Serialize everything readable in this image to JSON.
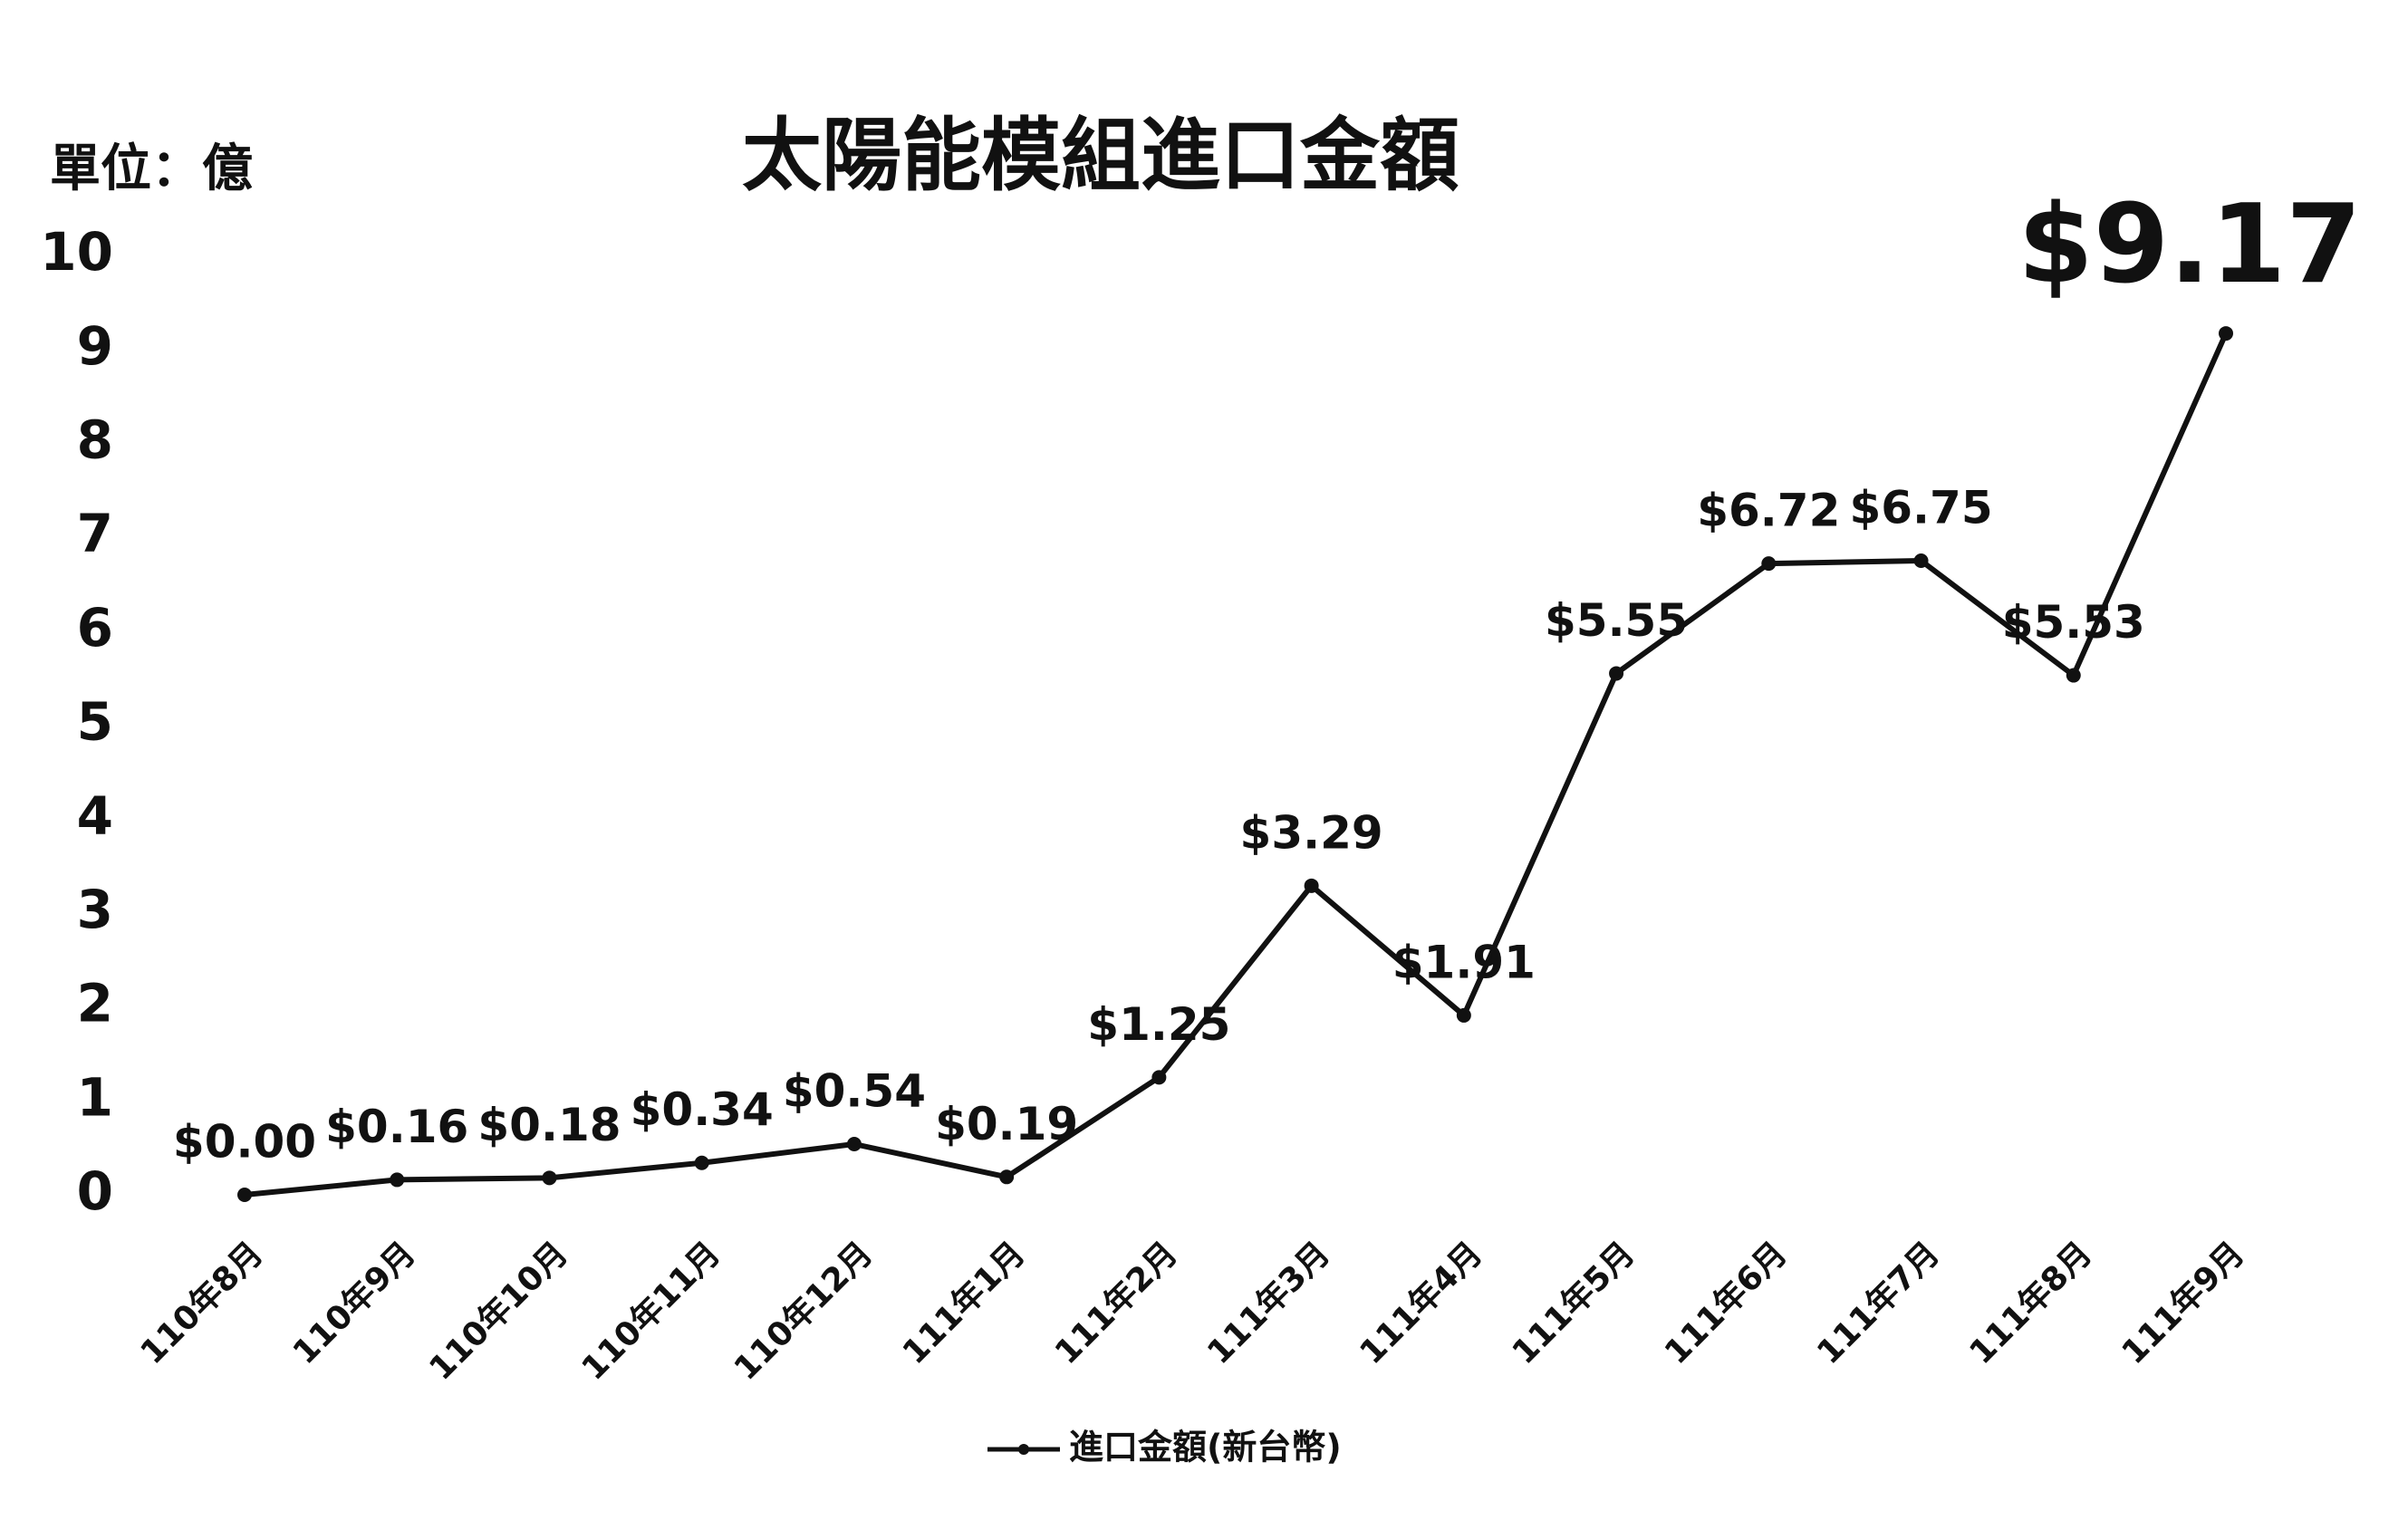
{
  "chart_data": {
    "type": "line",
    "title": "太陽能模組進口金額",
    "y_axis_label": "單位：億",
    "categories": [
      "110年8月",
      "110年9月",
      "110年10月",
      "110年11月",
      "110年12月",
      "111年1月",
      "111年2月",
      "111年3月",
      "111年4月",
      "111年5月",
      "111年6月",
      "111年7月",
      "111年8月",
      "111年9月"
    ],
    "series": [
      {
        "name": "進口金額(新台幣)",
        "color": "#111111",
        "values": [
          0.0,
          0.16,
          0.18,
          0.34,
          0.54,
          0.19,
          1.25,
          3.29,
          1.91,
          5.55,
          6.72,
          6.75,
          5.53,
          9.17
        ],
        "value_labels": [
          "$0.00",
          "$0.16",
          "$0.18",
          "$0.34",
          "$0.54",
          "$0.19",
          "$1.25",
          "$3.29",
          "$1.91",
          "$5.55",
          "$6.72",
          "$6.75",
          "$5.53",
          "$9.17"
        ]
      }
    ],
    "ylim": [
      0,
      10
    ],
    "yticks": [
      0,
      1,
      2,
      3,
      4,
      5,
      6,
      7,
      8,
      9,
      10
    ],
    "grid": false,
    "legend": "bottom"
  }
}
